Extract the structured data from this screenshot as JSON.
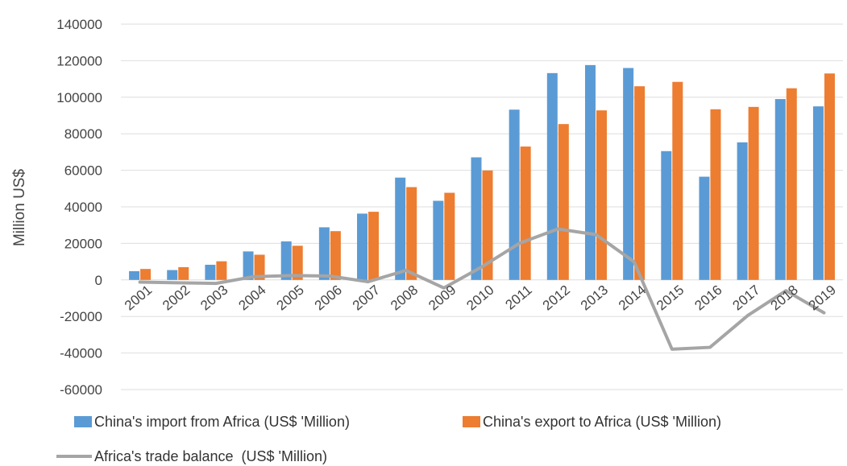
{
  "chart_data": {
    "type": "bar",
    "ylabel": "Million US$",
    "ylim": [
      -60000,
      140000
    ],
    "yticks": [
      140000,
      120000,
      100000,
      80000,
      60000,
      40000,
      20000,
      0,
      -20000,
      -40000,
      -60000
    ],
    "categories": [
      "2001",
      "2002",
      "2003",
      "2004",
      "2005",
      "2006",
      "2007",
      "2008",
      "2009",
      "2010",
      "2011",
      "2012",
      "2013",
      "2014",
      "2015",
      "2016",
      "2017",
      "2018",
      "2019"
    ],
    "grid": true,
    "legend_position": "bottom",
    "series": [
      {
        "name": "China's import from Africa (US$ 'Million)",
        "kind": "bar",
        "color": "#5b9bd5",
        "values": [
          4800,
          5400,
          8300,
          15600,
          21100,
          28800,
          36300,
          56000,
          43300,
          67100,
          93200,
          113200,
          117600,
          116000,
          70500,
          56500,
          75300,
          99000,
          95000
        ]
      },
      {
        "name": "China's export to Africa (US$ 'Million)",
        "kind": "bar",
        "color": "#ed7d31",
        "values": [
          6000,
          7000,
          10200,
          13800,
          18700,
          26700,
          37300,
          50800,
          47700,
          59900,
          73000,
          85300,
          92800,
          106000,
          108400,
          93400,
          94700,
          104900,
          113000
        ]
      },
      {
        "name": "Africa's trade balance  (US$ 'Million)",
        "kind": "line",
        "color": "#a5a5a5",
        "values": [
          -1200,
          -1600,
          -1900,
          1800,
          2400,
          2100,
          -1000,
          5200,
          -4400,
          7200,
          20200,
          27900,
          24800,
          10000,
          -37900,
          -36900,
          -19400,
          -5900,
          -18000
        ]
      }
    ]
  }
}
